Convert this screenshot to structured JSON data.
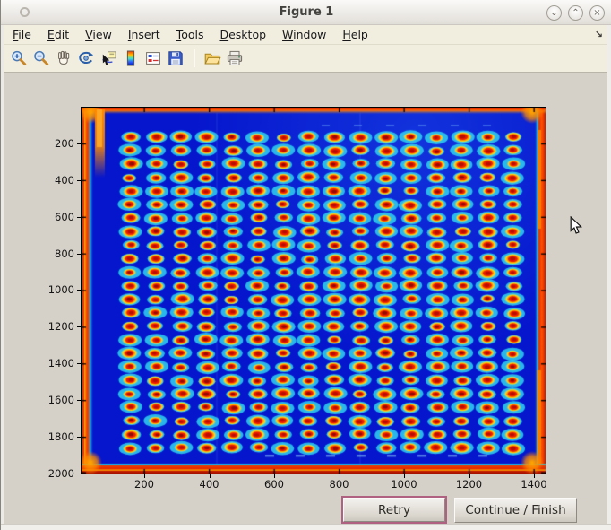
{
  "window": {
    "title": "Figure 1",
    "controls": [
      {
        "name": "minimize",
        "glyph": "⌄"
      },
      {
        "name": "maximize",
        "glyph": "⌃"
      },
      {
        "name": "close",
        "glyph": "×"
      }
    ]
  },
  "menu": {
    "items": [
      {
        "label": "File"
      },
      {
        "label": "Edit"
      },
      {
        "label": "View"
      },
      {
        "label": "Insert"
      },
      {
        "label": "Tools"
      },
      {
        "label": "Desktop"
      },
      {
        "label": "Window"
      },
      {
        "label": "Help"
      }
    ],
    "overflow_arrow": "↘"
  },
  "toolbar": {
    "tools": [
      "zoom-in",
      "zoom-out",
      "pan",
      "rotate-3d",
      "data-cursor",
      "insert-colorbar",
      "insert-legend",
      "save-figure",
      "open-file",
      "print-figure"
    ]
  },
  "figure": {
    "axes": {
      "x_ticks": [
        200,
        400,
        600,
        800,
        1000,
        1200,
        1400
      ],
      "y_ticks": [
        200,
        400,
        600,
        800,
        1000,
        1200,
        1400,
        1600,
        1800,
        2000
      ]
    },
    "image": {
      "type": "heatmap-image",
      "description": "scanned microtiter plate rendered with jet colormap: grid of red-centered spots with yellow rings and cyan halos on deep blue, red-orange glow around plate edges",
      "grid_rows": 24,
      "grid_cols": 16,
      "colormap": "jet",
      "colors": {
        "background": "#0616cd",
        "spot_core": "#b21000",
        "spot_red": "#ee1a02",
        "spot_orange": "#ff9000",
        "spot_ring": "#ffd70a",
        "spot_halo": "#2fd4ee",
        "edge_glow": "#e62c00",
        "edge_hot": "#ff6000",
        "corner_glow": "#ffa200"
      }
    }
  },
  "actions": {
    "retry": {
      "label": "Retry"
    },
    "continue": {
      "label": "Continue / Finish"
    }
  }
}
